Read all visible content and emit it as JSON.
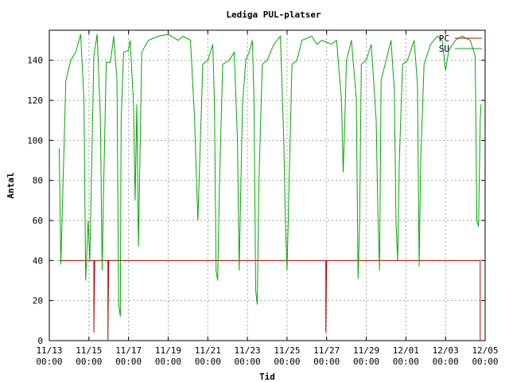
{
  "chart_data": {
    "type": "line",
    "title": "Lediga PUL-platser",
    "xlabel": "Tid",
    "ylabel": "Antal",
    "ylim": [
      0,
      155
    ],
    "yticks": [
      0,
      20,
      40,
      60,
      80,
      100,
      120,
      140
    ],
    "xlim": [
      "2023-11-13 00:00",
      "2023-12-05 00:00"
    ],
    "xticks": [
      {
        "date": "2023-11-13 00:00",
        "l1": "11/13",
        "l2": "00:00"
      },
      {
        "date": "2023-11-15 00:00",
        "l1": "11/15",
        "l2": "00:00"
      },
      {
        "date": "2023-11-17 00:00",
        "l1": "11/17",
        "l2": "00:00"
      },
      {
        "date": "2023-11-19 00:00",
        "l1": "11/19",
        "l2": "00:00"
      },
      {
        "date": "2023-11-21 00:00",
        "l1": "11/21",
        "l2": "00:00"
      },
      {
        "date": "2023-11-23 00:00",
        "l1": "11/23",
        "l2": "00:00"
      },
      {
        "date": "2023-11-25 00:00",
        "l1": "11/25",
        "l2": "00:00"
      },
      {
        "date": "2023-11-27 00:00",
        "l1": "11/27",
        "l2": "00:00"
      },
      {
        "date": "2023-11-29 00:00",
        "l1": "11/29",
        "l2": "00:00"
      },
      {
        "date": "2023-12-01 00:00",
        "l1": "12/01",
        "l2": "00:00"
      },
      {
        "date": "2023-12-03 00:00",
        "l1": "12/03",
        "l2": "00:00"
      },
      {
        "date": "2023-12-05 00:00",
        "l1": "12/05",
        "l2": "00:00"
      }
    ],
    "grid": true,
    "legend_position": "top-right",
    "series": [
      {
        "name": "PC",
        "color": "#cc0000",
        "points": [
          [
            "2023-11-13 12:00",
            40
          ],
          [
            "2023-11-15 06:00",
            40
          ],
          [
            "2023-11-15 06:00",
            4
          ],
          [
            "2023-11-15 07:00",
            40
          ],
          [
            "2023-11-15 23:00",
            40
          ],
          [
            "2023-11-15 23:00",
            0
          ],
          [
            "2023-11-16 00:00",
            40
          ],
          [
            "2023-11-26 23:00",
            40
          ],
          [
            "2023-11-26 23:00",
            4
          ],
          [
            "2023-11-27 00:00",
            40
          ],
          [
            "2023-12-04 18:00",
            40
          ],
          [
            "2023-12-04 18:00",
            0
          ]
        ]
      },
      {
        "name": "SU",
        "color": "#00aa00",
        "points": [
          [
            "2023-11-13 12:00",
            96
          ],
          [
            "2023-11-13 14:00",
            38
          ],
          [
            "2023-11-13 20:00",
            130
          ],
          [
            "2023-11-14 02:00",
            140
          ],
          [
            "2023-11-14 08:00",
            144
          ],
          [
            "2023-11-14 14:00",
            153
          ],
          [
            "2023-11-14 18:00",
            120
          ],
          [
            "2023-11-14 20:00",
            30
          ],
          [
            "2023-11-14 23:00",
            60
          ],
          [
            "2023-11-15 01:00",
            40
          ],
          [
            "2023-11-15 06:00",
            142
          ],
          [
            "2023-11-15 10:00",
            153
          ],
          [
            "2023-11-15 14:00",
            110
          ],
          [
            "2023-11-15 16:00",
            35
          ],
          [
            "2023-11-15 18:00",
            80
          ],
          [
            "2023-11-15 21:00",
            139
          ],
          [
            "2023-11-16 02:00",
            139
          ],
          [
            "2023-11-16 06:00",
            152
          ],
          [
            "2023-11-16 10:00",
            130
          ],
          [
            "2023-11-16 12:00",
            18
          ],
          [
            "2023-11-16 14:00",
            12
          ],
          [
            "2023-11-16 15:00",
            110
          ],
          [
            "2023-11-16 18:00",
            144
          ],
          [
            "2023-11-17 00:00",
            145
          ],
          [
            "2023-11-17 02:00",
            150
          ],
          [
            "2023-11-17 06:00",
            118
          ],
          [
            "2023-11-17 08:00",
            70
          ],
          [
            "2023-11-17 10:00",
            118
          ],
          [
            "2023-11-17 12:00",
            47
          ],
          [
            "2023-11-17 16:00",
            144
          ],
          [
            "2023-11-18 00:00",
            150
          ],
          [
            "2023-11-18 12:00",
            152
          ],
          [
            "2023-11-19 00:00",
            153
          ],
          [
            "2023-11-19 12:00",
            150
          ],
          [
            "2023-11-19 18:00",
            152
          ],
          [
            "2023-11-20 03:00",
            150
          ],
          [
            "2023-11-20 08:00",
            110
          ],
          [
            "2023-11-20 10:00",
            85
          ],
          [
            "2023-11-20 12:00",
            60
          ],
          [
            "2023-11-20 18:00",
            138
          ],
          [
            "2023-11-21 00:00",
            140
          ],
          [
            "2023-11-21 06:00",
            148
          ],
          [
            "2023-11-21 08:00",
            120
          ],
          [
            "2023-11-21 10:00",
            35
          ],
          [
            "2023-11-21 12:00",
            30
          ],
          [
            "2023-11-21 14:00",
            75
          ],
          [
            "2023-11-21 18:00",
            138
          ],
          [
            "2023-11-22 02:00",
            140
          ],
          [
            "2023-11-22 08:00",
            144
          ],
          [
            "2023-11-22 12:00",
            100
          ],
          [
            "2023-11-22 14:00",
            35
          ],
          [
            "2023-11-22 18:00",
            118
          ],
          [
            "2023-11-22 22:00",
            140
          ],
          [
            "2023-11-23 02:00",
            144
          ],
          [
            "2023-11-23 06:00",
            150
          ],
          [
            "2023-11-23 08:00",
            120
          ],
          [
            "2023-11-23 10:00",
            25
          ],
          [
            "2023-11-23 12:00",
            18
          ],
          [
            "2023-11-23 14:00",
            80
          ],
          [
            "2023-11-23 18:00",
            138
          ],
          [
            "2023-11-24 00:00",
            140
          ],
          [
            "2023-11-24 08:00",
            148
          ],
          [
            "2023-11-24 16:00",
            152
          ],
          [
            "2023-11-24 20:00",
            100
          ],
          [
            "2023-11-24 22:00",
            60
          ],
          [
            "2023-11-25 00:00",
            35
          ],
          [
            "2023-11-25 06:00",
            138
          ],
          [
            "2023-11-25 12:00",
            140
          ],
          [
            "2023-11-25 18:00",
            150
          ],
          [
            "2023-11-26 06:00",
            152
          ],
          [
            "2023-11-26 12:00",
            148
          ],
          [
            "2023-11-26 18:00",
            150
          ],
          [
            "2023-11-27 06:00",
            148
          ],
          [
            "2023-11-27 12:00",
            150
          ],
          [
            "2023-11-27 18:00",
            120
          ],
          [
            "2023-11-27 20:00",
            84
          ],
          [
            "2023-11-27 22:00",
            110
          ],
          [
            "2023-11-28 00:00",
            140
          ],
          [
            "2023-11-28 06:00",
            150
          ],
          [
            "2023-11-28 12:00",
            120
          ],
          [
            "2023-11-28 14:00",
            31
          ],
          [
            "2023-11-28 16:00",
            60
          ],
          [
            "2023-11-28 18:00",
            138
          ],
          [
            "2023-11-29 00:00",
            140
          ],
          [
            "2023-11-29 06:00",
            148
          ],
          [
            "2023-11-29 12:00",
            110
          ],
          [
            "2023-11-29 14:00",
            65
          ],
          [
            "2023-11-29 16:00",
            35
          ],
          [
            "2023-11-29 18:00",
            130
          ],
          [
            "2023-11-30 00:00",
            140
          ],
          [
            "2023-11-30 06:00",
            150
          ],
          [
            "2023-11-30 10:00",
            125
          ],
          [
            "2023-11-30 12:00",
            60
          ],
          [
            "2023-11-30 14:00",
            40
          ],
          [
            "2023-11-30 16:00",
            90
          ],
          [
            "2023-11-30 20:00",
            138
          ],
          [
            "2023-12-01 02:00",
            140
          ],
          [
            "2023-12-01 10:00",
            150
          ],
          [
            "2023-12-01 14:00",
            128
          ],
          [
            "2023-12-01 16:00",
            37
          ],
          [
            "2023-12-01 18:00",
            90
          ],
          [
            "2023-12-01 22:00",
            138
          ],
          [
            "2023-12-02 06:00",
            148
          ],
          [
            "2023-12-02 14:00",
            152
          ],
          [
            "2023-12-02 20:00",
            150
          ],
          [
            "2023-12-03 00:00",
            135
          ],
          [
            "2023-12-03 04:00",
            145
          ],
          [
            "2023-12-03 12:00",
            150
          ],
          [
            "2023-12-03 20:00",
            152
          ],
          [
            "2023-12-04 06:00",
            150
          ],
          [
            "2023-12-04 12:00",
            142
          ],
          [
            "2023-12-04 14:00",
            60
          ],
          [
            "2023-12-04 16:00",
            57
          ],
          [
            "2023-12-04 18:00",
            110
          ],
          [
            "2023-12-04 19:00",
            118
          ]
        ]
      }
    ]
  }
}
